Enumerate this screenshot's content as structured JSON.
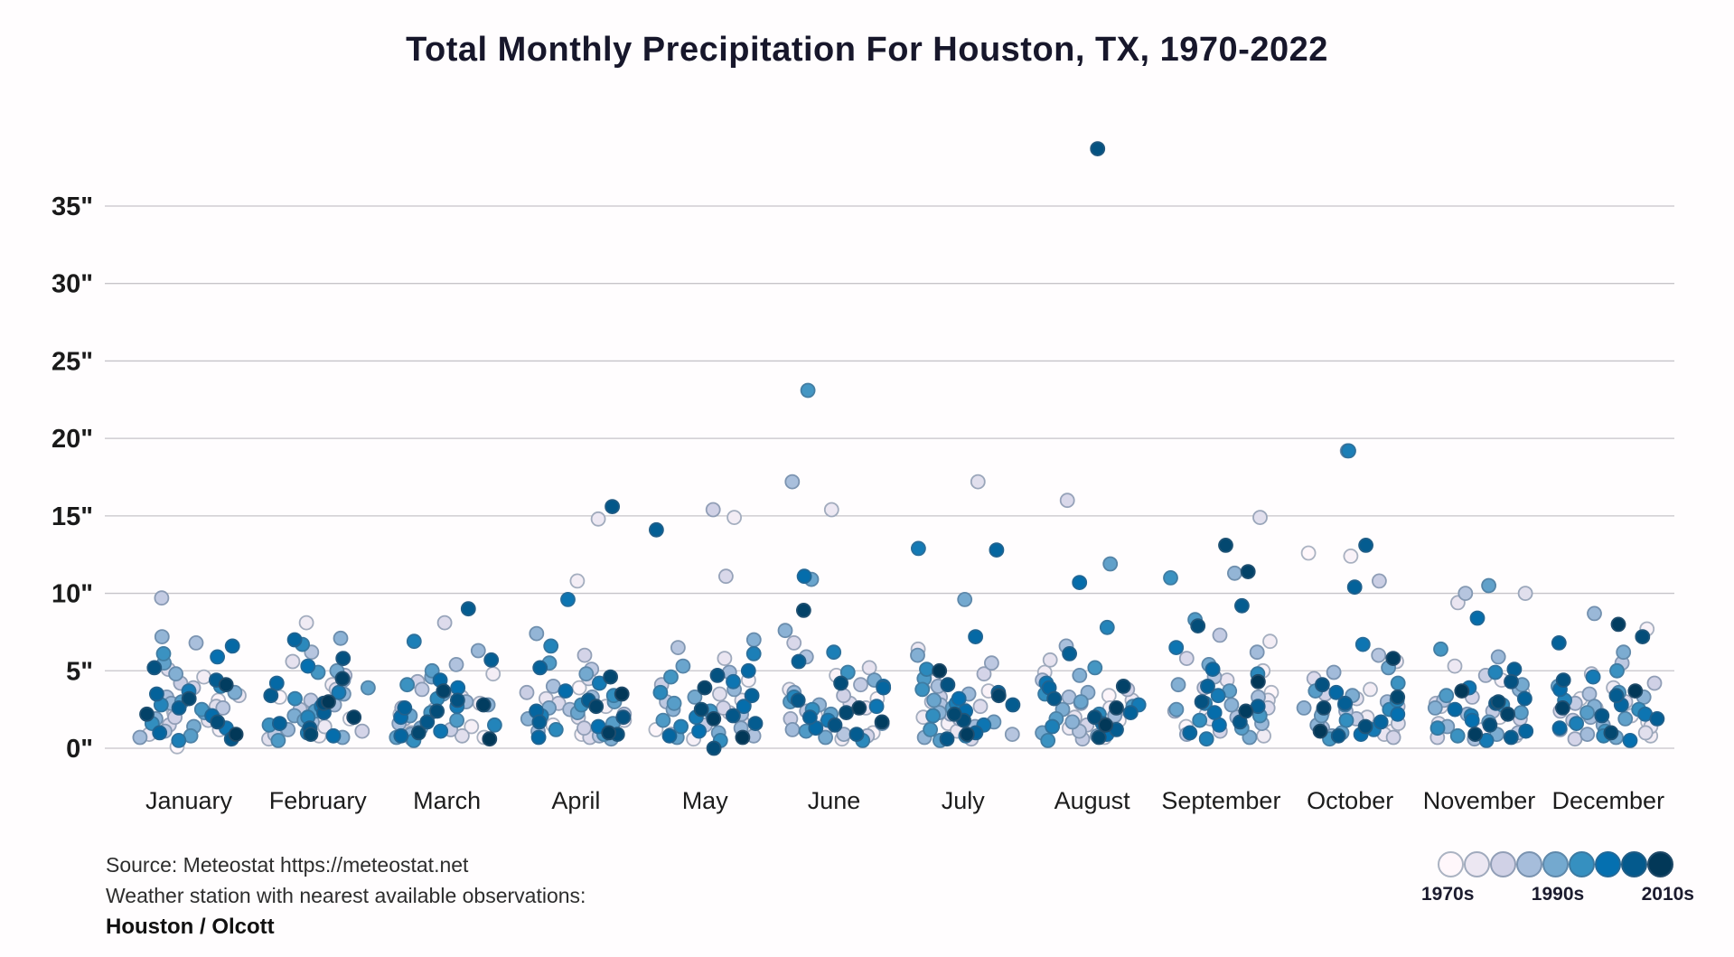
{
  "title": "Total Monthly Precipitation For Houston, TX, 1970-2022",
  "footer": {
    "source": "Source: Meteostat https://meteostat.net",
    "station_note": "Weather station with nearest available observations:",
    "station": "Houston / Olcott"
  },
  "legend": {
    "labels": [
      "1970s",
      "1990s",
      "2010s"
    ]
  },
  "chart_data": {
    "type": "scatter",
    "title": "Total Monthly Precipitation For Houston, TX, 1970-2022",
    "x_categories": [
      "January",
      "February",
      "March",
      "April",
      "May",
      "June",
      "July",
      "August",
      "September",
      "October",
      "November",
      "December"
    ],
    "y_ticks": [
      0,
      5,
      10,
      15,
      20,
      25,
      30,
      35
    ],
    "y_tick_suffix": "\"",
    "ylim": [
      0,
      40
    ],
    "y_unit": "inches",
    "year_range": [
      1970,
      2022
    ],
    "grid": true,
    "legend_position": "bottom-right",
    "color_scale_stops": [
      "#fff7fb",
      "#ece7f2",
      "#d0d1e6",
      "#a6bddb",
      "#74a9cf",
      "#3690c0",
      "#0570b0",
      "#045a8d",
      "#023858"
    ],
    "values_by_month": {
      "January": [
        0.1,
        2.4,
        3.1,
        1.2,
        4.6,
        2.2,
        0.9,
        3.4,
        1.8,
        2.7,
        5.1,
        1.5,
        3.9,
        2.0,
        4.2,
        9.7,
        2.6,
        1.1,
        3.3,
        6.8,
        0.7,
        2.9,
        7.2,
        1.9,
        4.8,
        3.6,
        1.4,
        2.3,
        5.5,
        0.8,
        3.0,
        2.5,
        6.1,
        1.6,
        4.0,
        2.8,
        0.5,
        3.7,
        1.3,
        5.9,
        2.1,
        6.6,
        1.0,
        3.5,
        2.6,
        4.4,
        0.6,
        5.2,
        1.7,
        3.2,
        2.2,
        4.1,
        0.9
      ],
      "February": [
        1.9,
        3.3,
        0.8,
        2.6,
        4.1,
        8.1,
        1.4,
        2.9,
        5.6,
        0.6,
        3.8,
        2.2,
        1.1,
        4.7,
        2.5,
        3.1,
        0.9,
        6.2,
        1.7,
        2.8,
        4.4,
        1.2,
        3.5,
        7.1,
        0.7,
        2.1,
        5.0,
        1.8,
        3.9,
        2.4,
        0.5,
        4.9,
        1.5,
        3.2,
        6.7,
        2.0,
        1.0,
        3.6,
        2.7,
        5.3,
        0.8,
        4.2,
        7.0,
        1.6,
        2.3,
        3.4,
        1.3,
        5.8,
        2.9,
        0.9,
        4.5,
        2.0,
        3.0
      ],
      "March": [
        2.2,
        0.7,
        3.6,
        1.4,
        4.8,
        2.9,
        1.0,
        3.3,
        2.5,
        0.8,
        8.1,
        1.9,
        4.3,
        2.6,
        1.2,
        3.8,
        0.6,
        2.4,
        5.4,
        1.6,
        3.0,
        6.3,
        0.9,
        2.8,
        4.6,
        1.3,
        3.5,
        2.1,
        0.7,
        5.0,
        1.8,
        2.3,
        4.1,
        0.5,
        3.2,
        1.5,
        6.9,
        2.7,
        1.1,
        3.9,
        2.0,
        4.4,
        0.8,
        2.6,
        5.7,
        9.0,
        1.7,
        3.1,
        2.4,
        1.0,
        3.7,
        2.8,
        0.6
      ],
      "April": [
        1.5,
        3.9,
        0.9,
        2.7,
        10.8,
        1.8,
        14.8,
        3.2,
        2.0,
        4.5,
        0.7,
        2.9,
        6.0,
        1.3,
        3.6,
        2.2,
        5.1,
        0.8,
        2.5,
        4.0,
        1.1,
        3.3,
        7.4,
        1.9,
        2.6,
        0.6,
        4.8,
        2.3,
        3.0,
        1.6,
        5.5,
        0.9,
        2.8,
        3.4,
        1.2,
        6.6,
        2.1,
        4.2,
        9.6,
        1.4,
        3.7,
        0.7,
        2.4,
        5.2,
        1.7,
        3.1,
        15.6,
        2.0,
        0.9,
        4.6,
        2.7,
        1.0,
        3.5
      ],
      "May": [
        2.8,
        1.2,
        4.4,
        0.6,
        14.9,
        3.1,
        2.3,
        5.8,
        1.7,
        3.5,
        0.9,
        11.1,
        2.6,
        15.4,
        4.1,
        1.5,
        3.0,
        6.5,
        0.8,
        2.2,
        4.9,
        1.3,
        3.8,
        2.5,
        7.0,
        1.0,
        3.3,
        5.3,
        0.7,
        2.9,
        1.8,
        4.6,
        2.4,
        0.5,
        3.6,
        1.4,
        6.1,
        2.0,
        4.3,
        1.1,
        2.7,
        5.0,
        0.8,
        3.4,
        14.1,
        1.6,
        2.1,
        4.7,
        0.0,
        2.5,
        3.9,
        1.9,
        0.7
      ],
      "June": [
        3.2,
        1.0,
        4.7,
        2.1,
        0.6,
        3.8,
        15.4,
        2.6,
        5.2,
        1.4,
        2.9,
        6.8,
        0.8,
        3.4,
        1.9,
        4.1,
        2.4,
        0.9,
        5.9,
        17.2,
        1.2,
        3.6,
        2.8,
        7.6,
        1.6,
        4.4,
        0.7,
        10.9,
        2.2,
        3.0,
        1.1,
        23.1,
        4.9,
        2.5,
        0.5,
        3.3,
        6.2,
        1.8,
        2.7,
        4.0,
        11.1,
        1.3,
        3.9,
        2.0,
        5.6,
        0.9,
        3.1,
        1.5,
        4.2,
        2.3,
        8.9,
        1.7,
        2.6
      ],
      "July": [
        2.5,
        0.8,
        3.7,
        1.6,
        4.3,
        2.0,
        6.4,
        1.1,
        3.0,
        17.2,
        2.7,
        0.6,
        4.8,
        1.9,
        3.3,
        2.2,
        5.5,
        0.9,
        2.8,
        4.0,
        1.4,
        3.5,
        0.7,
        2.3,
        6.0,
        1.7,
        9.6,
        3.1,
        2.6,
        0.5,
        4.5,
        1.2,
        3.8,
        2.1,
        5.1,
        0.8,
        2.9,
        12.9,
        1.5,
        3.2,
        2.4,
        7.2,
        12.8,
        1.0,
        3.6,
        2.8,
        0.6,
        4.1,
        1.8,
        2.2,
        3.4,
        0.9,
        5.0
      ],
      "August": [
        1.8,
        3.4,
        0.7,
        2.6,
        4.9,
        1.3,
        3.1,
        2.0,
        5.7,
        0.9,
        2.4,
        16.0,
        1.5,
        3.8,
        2.9,
        0.6,
        4.4,
        1.1,
        3.3,
        6.6,
        2.1,
        0.8,
        3.6,
        1.7,
        4.7,
        2.5,
        1.0,
        3.0,
        11.9,
        1.9,
        2.7,
        5.2,
        0.5,
        3.5,
        2.2,
        7.8,
        1.4,
        2.8,
        4.2,
        0.9,
        10.7,
        1.6,
        3.9,
        2.3,
        6.1,
        1.2,
        3.2,
        38.7,
        2.0,
        0.7,
        4.0,
        2.6,
        1.5
      ],
      "September": [
        3.6,
        1.4,
        5.0,
        2.2,
        6.9,
        0.8,
        3.1,
        4.4,
        1.9,
        14.9,
        2.6,
        5.8,
        1.1,
        3.9,
        2.4,
        7.3,
        0.9,
        4.6,
        2.0,
        3.3,
        6.2,
        1.6,
        11.3,
        2.8,
        4.1,
        0.7,
        5.4,
        2.5,
        3.7,
        1.3,
        8.3,
        2.1,
        11.0,
        1.8,
        4.8,
        2.9,
        0.6,
        3.4,
        6.5,
        1.5,
        2.3,
        5.1,
        1.0,
        4.0,
        2.7,
        9.2,
        1.7,
        3.0,
        7.9,
        13.1,
        11.4,
        2.4,
        4.3
      ],
      "October": [
        12.6,
        2.3,
        12.4,
        1.1,
        3.8,
        2.0,
        5.6,
        0.9,
        3.2,
        1.6,
        4.5,
        2.7,
        0.7,
        3.5,
        10.8,
        1.9,
        2.4,
        6.0,
        1.3,
        3.0,
        4.9,
        0.8,
        2.6,
        1.5,
        19.2,
        3.4,
        2.1,
        5.2,
        1.0,
        3.7,
        2.8,
        0.6,
        4.2,
        1.8,
        2.5,
        3.1,
        19.2,
        1.2,
        6.7,
        2.2,
        0.9,
        3.6,
        1.7,
        10.4,
        2.9,
        13.1,
        0.8,
        4.1,
        1.4,
        3.3,
        2.6,
        5.8,
        1.1
      ],
      "November": [
        2.0,
        3.6,
        1.2,
        4.4,
        0.8,
        2.7,
        5.3,
        9.4,
        1.6,
        10.0,
        2.9,
        0.7,
        3.3,
        1.9,
        4.7,
        2.4,
        1.0,
        10.0,
        3.1,
        0.6,
        2.2,
        5.9,
        1.4,
        3.8,
        2.6,
        0.9,
        4.1,
        1.7,
        10.5,
        2.3,
        3.4,
        6.4,
        0.8,
        2.8,
        1.3,
        4.9,
        2.1,
        0.5,
        3.9,
        1.8,
        8.4,
        2.5,
        1.1,
        3.2,
        5.1,
        0.7,
        2.9,
        4.3,
        1.5,
        3.0,
        2.2,
        0.9,
        3.7
      ],
      "December": [
        1.7,
        3.2,
        7.7,
        2.1,
        0.8,
        3.9,
        1.4,
        2.6,
        4.8,
        1.0,
        3.0,
        2.4,
        0.6,
        4.2,
        1.8,
        2.9,
        5.5,
        1.2,
        3.5,
        2.0,
        0.9,
        8.7,
        1.5,
        3.3,
        2.7,
        6.2,
        0.7,
        4.0,
        1.9,
        2.3,
        3.6,
        1.1,
        5.0,
        2.5,
        0.8,
        3.1,
        1.6,
        4.6,
        2.2,
        0.5,
        3.8,
        1.3,
        2.8,
        6.8,
        1.9,
        3.4,
        2.1,
        4.4,
        7.2,
        1.0,
        2.6,
        8.0,
        3.7
      ]
    }
  }
}
